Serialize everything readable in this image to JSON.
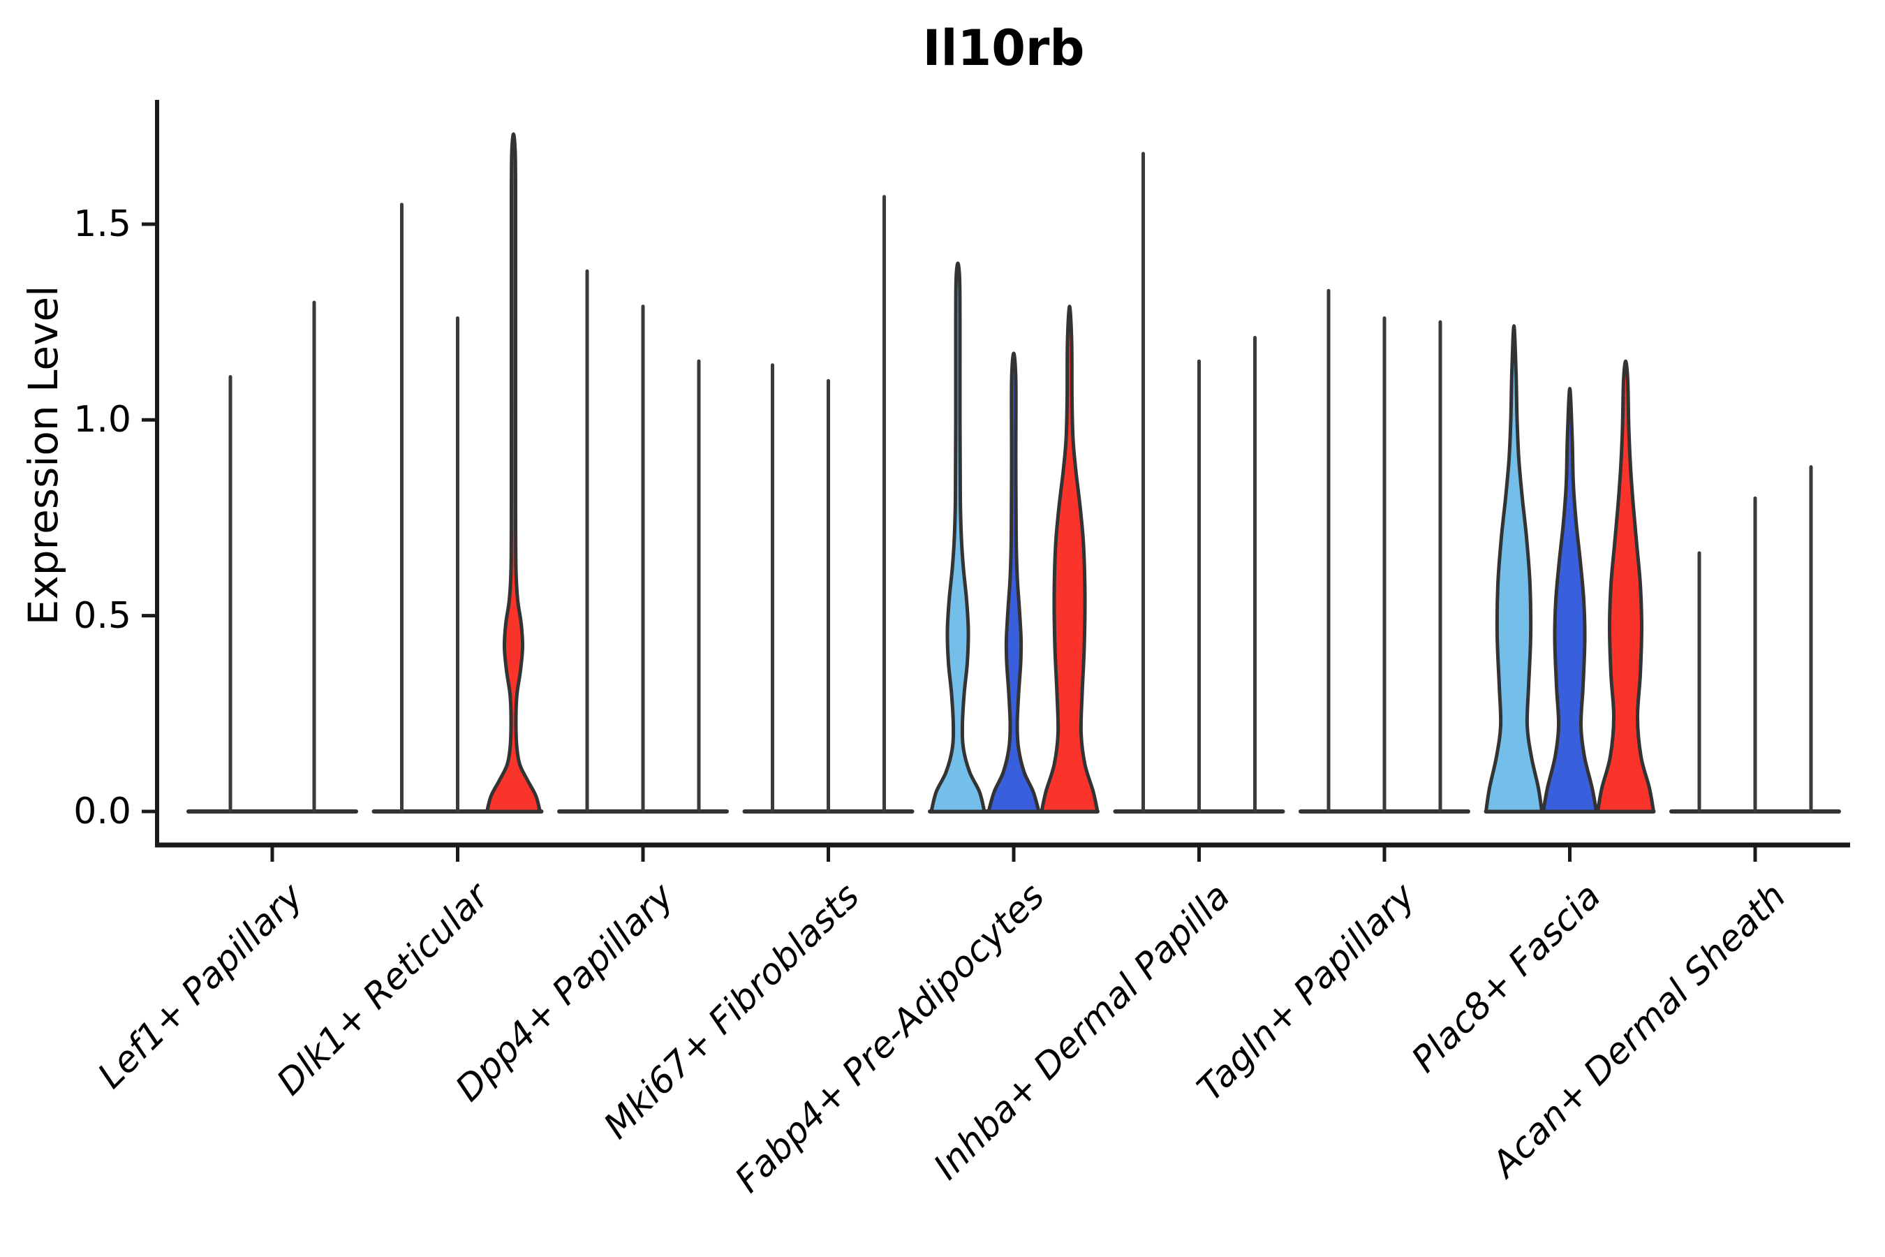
{
  "chart_data": {
    "type": "violin",
    "title": "Il10rb",
    "ylabel": "Expression Level",
    "yticks": [
      0.0,
      0.5,
      1.0,
      1.5
    ],
    "ytick_labels": [
      "0.0",
      "0.5",
      "1.0",
      "1.5"
    ],
    "ylim": [
      -0.09,
      1.82
    ],
    "grid": false,
    "legend": "none",
    "series_palette": {
      "light-blue": "#73BFE9",
      "dark-blue": "#3A5FDD",
      "red": "#FA342B"
    },
    "outline_color": "#333333",
    "line_color": "#3A3A3A",
    "axis_color": "#1a1a1a",
    "categories": [
      "Lef1+ Papillary",
      "Dlk1+ Reticular",
      "Dpp4+ Papillary",
      "Mki67+ Fibroblasts",
      "Fabp4+ Pre-Adipocytes",
      "Inhba+ Dermal Papilla",
      "Tagln+ Papillary",
      "Plac8+ Fascia",
      "Acan+ Dermal Sheath"
    ],
    "groups": [
      {
        "category": "Lef1+ Papillary",
        "violins": [
          {
            "fill": "none",
            "max": 1.11
          },
          {
            "fill": "none",
            "max": 1.3
          }
        ]
      },
      {
        "category": "Dlk1+ Reticular",
        "violins": [
          {
            "fill": "none",
            "max": 1.55
          },
          {
            "fill": "none",
            "max": 1.26
          },
          {
            "fill": "red",
            "max": 1.73,
            "profile": [
              [
                0,
                38
              ],
              [
                0.04,
                32
              ],
              [
                0.08,
                20
              ],
              [
                0.12,
                9
              ],
              [
                0.17,
                4.5
              ],
              [
                0.24,
                3.5
              ],
              [
                0.3,
                5
              ],
              [
                0.36,
                10
              ],
              [
                0.42,
                13
              ],
              [
                0.48,
                11
              ],
              [
                0.54,
                6
              ],
              [
                0.62,
                3.5
              ],
              [
                0.8,
                3
              ],
              [
                1.2,
                3
              ],
              [
                1.55,
                3
              ],
              [
                1.68,
                2.5
              ],
              [
                1.73,
                0
              ]
            ]
          }
        ]
      },
      {
        "category": "Dpp4+ Papillary",
        "violins": [
          {
            "fill": "none",
            "max": 1.38
          },
          {
            "fill": "none",
            "max": 1.29
          },
          {
            "fill": "none",
            "max": 1.15
          }
        ]
      },
      {
        "category": "Mki67+ Fibroblasts",
        "violins": [
          {
            "fill": "none",
            "max": 1.14
          },
          {
            "fill": "none",
            "max": 1.1
          },
          {
            "fill": "none",
            "max": 1.57
          }
        ]
      },
      {
        "category": "Fabp4+ Pre-Adipocytes",
        "violins": [
          {
            "fill": "light-blue",
            "max": 1.4,
            "profile": [
              [
                0,
                38
              ],
              [
                0.05,
                31
              ],
              [
                0.1,
                17
              ],
              [
                0.16,
                8
              ],
              [
                0.22,
                6.5
              ],
              [
                0.3,
                9
              ],
              [
                0.38,
                13.5
              ],
              [
                0.46,
                15
              ],
              [
                0.54,
                12.5
              ],
              [
                0.62,
                8
              ],
              [
                0.7,
                5
              ],
              [
                0.8,
                3.5
              ],
              [
                1.0,
                3
              ],
              [
                1.25,
                3
              ],
              [
                1.36,
                2.5
              ],
              [
                1.4,
                0
              ]
            ]
          },
          {
            "fill": "dark-blue",
            "max": 1.17,
            "profile": [
              [
                0,
                36
              ],
              [
                0.05,
                28
              ],
              [
                0.1,
                15
              ],
              [
                0.16,
                7
              ],
              [
                0.22,
                5
              ],
              [
                0.3,
                7
              ],
              [
                0.38,
                10
              ],
              [
                0.44,
                10.5
              ],
              [
                0.52,
                8
              ],
              [
                0.6,
                5
              ],
              [
                0.7,
                3.5
              ],
              [
                0.9,
                3
              ],
              [
                1.1,
                3
              ],
              [
                1.17,
                0
              ]
            ]
          },
          {
            "fill": "red",
            "max": 1.29,
            "profile": [
              [
                0,
                40
              ],
              [
                0.05,
                34
              ],
              [
                0.12,
                22
              ],
              [
                0.2,
                16.5
              ],
              [
                0.3,
                18
              ],
              [
                0.42,
                21
              ],
              [
                0.55,
                22
              ],
              [
                0.68,
                20
              ],
              [
                0.78,
                15
              ],
              [
                0.87,
                9
              ],
              [
                0.95,
                5
              ],
              [
                1.05,
                3.5
              ],
              [
                1.2,
                3
              ],
              [
                1.29,
                0
              ]
            ]
          }
        ]
      },
      {
        "category": "Inhba+ Dermal Papilla",
        "violins": [
          {
            "fill": "none",
            "max": 1.68
          },
          {
            "fill": "none",
            "max": 1.15
          },
          {
            "fill": "none",
            "max": 1.21
          }
        ]
      },
      {
        "category": "Tagln+ Papillary",
        "violins": [
          {
            "fill": "none",
            "max": 1.33
          },
          {
            "fill": "none",
            "max": 1.26
          },
          {
            "fill": "none",
            "max": 1.25
          }
        ]
      },
      {
        "category": "Plac8+ Fascia",
        "violins": [
          {
            "fill": "light-blue",
            "max": 1.24,
            "profile": [
              [
                0,
                40
              ],
              [
                0.06,
                35
              ],
              [
                0.14,
                25
              ],
              [
                0.22,
                19
              ],
              [
                0.32,
                21
              ],
              [
                0.45,
                24
              ],
              [
                0.58,
                23
              ],
              [
                0.7,
                18
              ],
              [
                0.8,
                12
              ],
              [
                0.9,
                7
              ],
              [
                1.0,
                4.5
              ],
              [
                1.12,
                3
              ],
              [
                1.24,
                0
              ]
            ]
          },
          {
            "fill": "dark-blue",
            "max": 1.08,
            "profile": [
              [
                0,
                38
              ],
              [
                0.06,
                32
              ],
              [
                0.14,
                21
              ],
              [
                0.22,
                16
              ],
              [
                0.32,
                19
              ],
              [
                0.44,
                21.5
              ],
              [
                0.54,
                20
              ],
              [
                0.64,
                15
              ],
              [
                0.74,
                9
              ],
              [
                0.84,
                5
              ],
              [
                0.95,
                3.5
              ],
              [
                1.08,
                0
              ]
            ]
          },
          {
            "fill": "red",
            "max": 1.15,
            "profile": [
              [
                0,
                40
              ],
              [
                0.06,
                34
              ],
              [
                0.14,
                22
              ],
              [
                0.24,
                17
              ],
              [
                0.35,
                21
              ],
              [
                0.47,
                23
              ],
              [
                0.58,
                21
              ],
              [
                0.68,
                16
              ],
              [
                0.78,
                11
              ],
              [
                0.88,
                7
              ],
              [
                0.98,
                4.5
              ],
              [
                1.1,
                3
              ],
              [
                1.15,
                0
              ]
            ]
          }
        ]
      },
      {
        "category": "Acan+ Dermal Sheath",
        "violins": [
          {
            "fill": "none",
            "max": 0.66
          },
          {
            "fill": "none",
            "max": 0.8
          },
          {
            "fill": "none",
            "max": 0.88
          }
        ]
      }
    ]
  }
}
